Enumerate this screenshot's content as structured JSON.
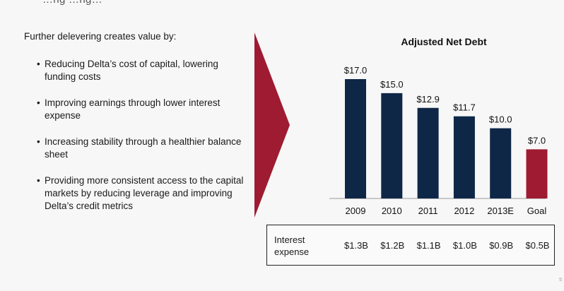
{
  "slide": {
    "top_fragment": "…ng  …ng…",
    "intro": "Further delevering creates value by:",
    "bullets": [
      "Reducing Delta’s cost of capital, lowering funding costs",
      "Improving earnings through lower interest expense",
      "Increasing stability through a healthier balance sheet",
      "Providing more consistent access to the capital markets by reducing leverage and improving Delta’s credit metrics"
    ],
    "page_number": "5"
  },
  "chart_data": {
    "type": "bar",
    "title": "Adjusted Net Debt",
    "categories": [
      "2009",
      "2010",
      "2011",
      "2012",
      "2013E",
      "Goal"
    ],
    "values": [
      17.0,
      15.0,
      12.9,
      11.7,
      10.0,
      7.0
    ],
    "data_labels": [
      "$17.0",
      "$15.0",
      "$12.9",
      "$11.7",
      "$10.0",
      "$7.0"
    ],
    "colors": [
      "#0e2747",
      "#0e2747",
      "#0e2747",
      "#0e2747",
      "#0e2747",
      "#9e1b32"
    ],
    "ylim": [
      0,
      17.0
    ],
    "grid": false,
    "legend": "none"
  },
  "interest_expense": {
    "label": "Interest expense",
    "values": [
      "$1.3B",
      "$1.2B",
      "$1.1B",
      "$1.0B",
      "$0.9B",
      "$0.5B"
    ]
  },
  "colors": {
    "navy": "#0e2747",
    "maroon": "#9e1b32",
    "arrow": "#9e1b32"
  }
}
